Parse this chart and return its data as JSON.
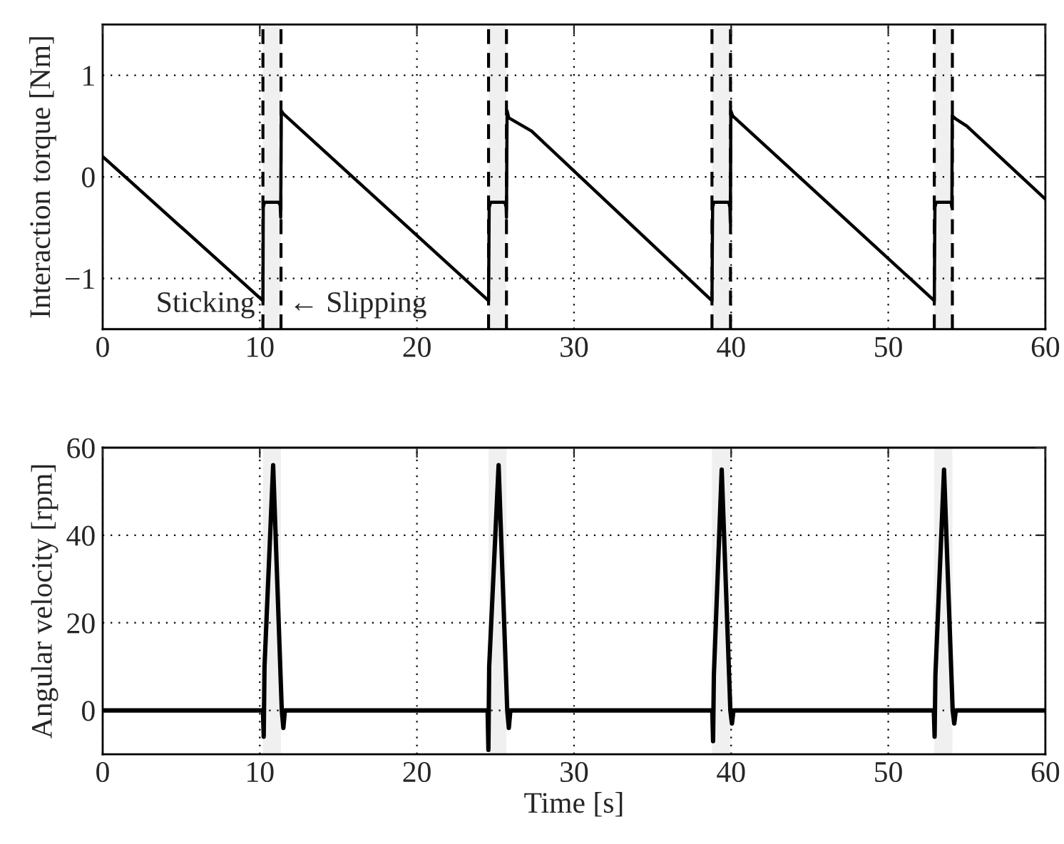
{
  "chart_data": [
    {
      "type": "line",
      "ylabel": "Interaction torque [Nm]",
      "xlim": [
        0,
        60
      ],
      "ylim": [
        -1.5,
        1.5
      ],
      "xticks": [
        0,
        10,
        20,
        30,
        40,
        50,
        60
      ],
      "yticks": [
        {
          "value": -1,
          "label": "−1"
        },
        0,
        1
      ],
      "grid": true,
      "line_style": "solid",
      "marker": "none",
      "series": [
        {
          "color": "#000000",
          "x": [
            0,
            10.2,
            10.22,
            10.3,
            11.2,
            11.3,
            11.33,
            11.37,
            11.5,
            24.56,
            24.6,
            24.7,
            25.6,
            25.68,
            25.7,
            25.74,
            25.85,
            27.3,
            38.78,
            38.82,
            38.9,
            39.85,
            39.92,
            39.95,
            39.98,
            40.1,
            52.93,
            52.97,
            53.05,
            54.0,
            54.05,
            54.07,
            54.3,
            55.0,
            60
          ],
          "values": [
            0.2,
            -1.22,
            -0.3,
            -0.25,
            -0.25,
            -0.28,
            -0.4,
            0.65,
            0.62,
            -1.22,
            -0.3,
            -0.25,
            -0.25,
            -0.3,
            -0.4,
            0.65,
            0.58,
            0.45,
            -1.22,
            -0.3,
            -0.25,
            -0.25,
            -0.3,
            -0.45,
            0.65,
            0.6,
            -1.22,
            -0.3,
            -0.25,
            -0.25,
            -0.3,
            0.6,
            0.57,
            0.5,
            -0.22
          ]
        }
      ],
      "bands": [
        {
          "axis": "x",
          "from": 10.2,
          "to": 11.35,
          "color": "#f0f0f0"
        },
        {
          "axis": "x",
          "from": 24.56,
          "to": 25.7,
          "color": "#f0f0f0"
        },
        {
          "axis": "x",
          "from": 38.78,
          "to": 39.96,
          "color": "#f0f0f0"
        },
        {
          "axis": "x",
          "from": 52.93,
          "to": 54.08,
          "color": "#f0f0f0"
        }
      ],
      "ref_lines": [
        {
          "axis": "x",
          "value": 10.2,
          "color": "#000000",
          "line_style": "dashed"
        },
        {
          "axis": "x",
          "value": 11.35,
          "color": "#000000",
          "line_style": "dashed"
        },
        {
          "axis": "x",
          "value": 24.56,
          "color": "#000000",
          "line_style": "dashed"
        },
        {
          "axis": "x",
          "value": 25.7,
          "color": "#000000",
          "line_style": "dashed"
        },
        {
          "axis": "x",
          "value": 38.78,
          "color": "#000000",
          "line_style": "dashed"
        },
        {
          "axis": "x",
          "value": 39.96,
          "color": "#000000",
          "line_style": "dashed"
        },
        {
          "axis": "x",
          "value": 52.93,
          "color": "#000000",
          "line_style": "dashed"
        },
        {
          "axis": "x",
          "value": 54.08,
          "color": "#000000",
          "line_style": "dashed"
        }
      ],
      "annotations": [
        "Sticking",
        "← Slipping"
      ]
    },
    {
      "type": "line",
      "xlabel": "Time [s]",
      "ylabel": "Angular velocity [rpm]",
      "xlim": [
        0,
        60
      ],
      "ylim": [
        -10,
        60
      ],
      "xticks": [
        0,
        10,
        20,
        30,
        40,
        50,
        60
      ],
      "yticks": [
        0,
        20,
        40,
        60
      ],
      "grid": true,
      "line_style": "solid",
      "marker": "none",
      "series": [
        {
          "color": "#000000",
          "x": [
            0,
            10.2,
            10.25,
            10.3,
            10.85,
            11.4,
            11.5,
            11.6,
            24.5,
            24.55,
            24.6,
            25.2,
            25.75,
            25.85,
            25.95,
            38.8,
            38.85,
            38.9,
            39.4,
            39.95,
            40.05,
            40.15,
            52.9,
            52.95,
            53.0,
            53.55,
            54.1,
            54.2,
            54.3,
            60
          ],
          "values": [
            0,
            0,
            -6,
            10,
            56,
            0,
            -4,
            0,
            0,
            -9,
            10,
            56,
            0,
            -4,
            0,
            0,
            -7,
            8,
            55,
            0,
            -3,
            0,
            0,
            -6,
            8,
            55,
            0,
            -3,
            0,
            0
          ]
        }
      ],
      "bands": [
        {
          "axis": "x",
          "from": 10.2,
          "to": 11.35,
          "color": "#f0f0f0"
        },
        {
          "axis": "x",
          "from": 24.56,
          "to": 25.7,
          "color": "#f0f0f0"
        },
        {
          "axis": "x",
          "from": 38.78,
          "to": 39.96,
          "color": "#f0f0f0"
        },
        {
          "axis": "x",
          "from": 52.93,
          "to": 54.08,
          "color": "#f0f0f0"
        }
      ]
    }
  ]
}
